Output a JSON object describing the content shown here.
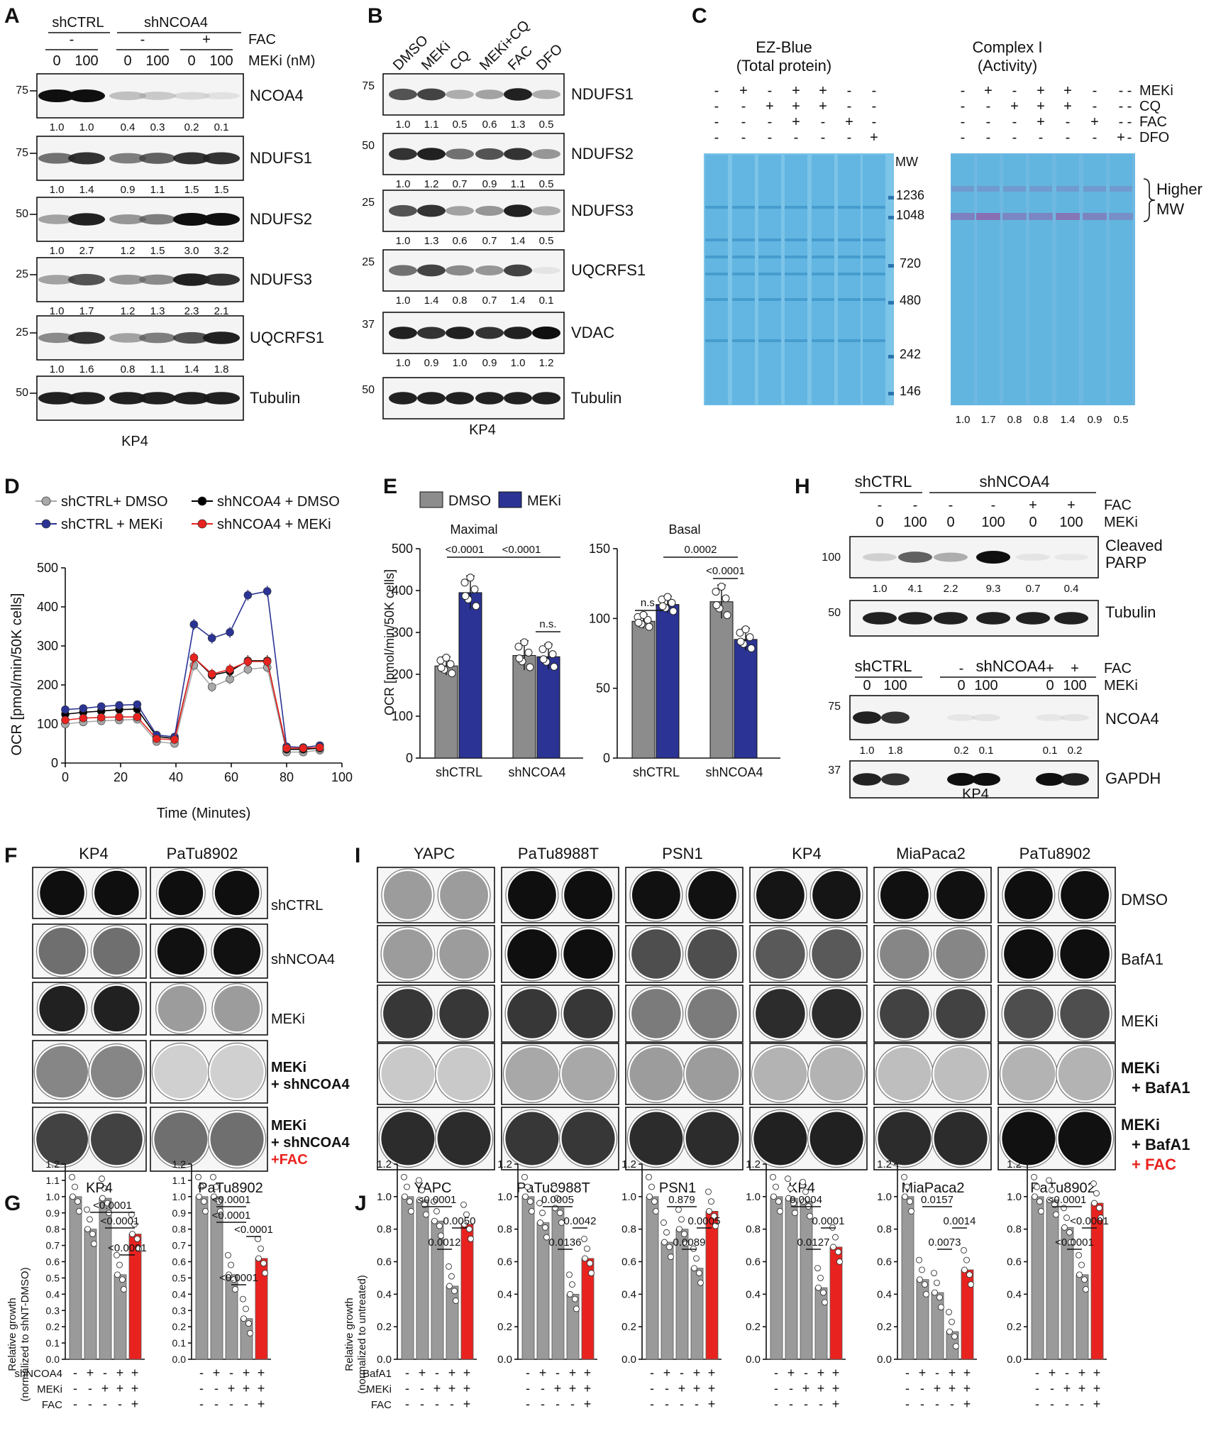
{
  "panels": {
    "A": {
      "label": "A",
      "group_ctrl": "shCTRL",
      "group_kd": "shNCOA4",
      "fac_label": "FAC",
      "meki_label": "MEKi (nM)",
      "fac_signs": [
        "-",
        "-",
        "+"
      ],
      "meki_doses": [
        "0",
        "100",
        "0",
        "100",
        "0",
        "100"
      ],
      "cell_line": "KP4",
      "blots": [
        {
          "name": "NCOA4",
          "mw": "75",
          "quant": [
            "1.0",
            "1.0",
            "0.4",
            "0.3",
            "0.2",
            "0.1"
          ],
          "intensity": [
            1.0,
            1.0,
            0.35,
            0.3,
            0.2,
            0.12
          ]
        },
        {
          "name": "NDUFS1",
          "mw": "75",
          "quant": [
            "1.0",
            "1.4",
            "0.9",
            "1.1",
            "1.5",
            "1.5"
          ],
          "intensity": [
            0.7,
            0.9,
            0.65,
            0.75,
            0.9,
            0.9
          ]
        },
        {
          "name": "NDUFS2",
          "mw": "50",
          "quant": [
            "1.0",
            "2.7",
            "1.2",
            "1.5",
            "3.0",
            "3.2"
          ],
          "intensity": [
            0.5,
            0.95,
            0.55,
            0.65,
            1.0,
            1.0
          ]
        },
        {
          "name": "NDUFS3",
          "mw": "25",
          "quant": [
            "1.0",
            "1.7",
            "1.2",
            "1.3",
            "2.3",
            "2.1"
          ],
          "intensity": [
            0.5,
            0.8,
            0.55,
            0.6,
            0.95,
            0.9
          ]
        },
        {
          "name": "UQCRFS1",
          "mw": "25",
          "quant": [
            "1.0",
            "1.6",
            "0.8",
            "1.1",
            "1.4",
            "1.8"
          ],
          "intensity": [
            0.6,
            0.9,
            0.5,
            0.65,
            0.8,
            0.95
          ]
        },
        {
          "name": "Tubulin",
          "mw": "50",
          "quant": [],
          "intensity": [
            0.95,
            0.95,
            0.95,
            0.95,
            0.95,
            0.95
          ]
        }
      ]
    },
    "B": {
      "label": "B",
      "lanes": [
        "DMSO",
        "MEKi",
        "CQ",
        "MEKi+CQ",
        "FAC",
        "DFO"
      ],
      "cell_line": "KP4",
      "blots": [
        {
          "name": "NDUFS1",
          "mw": "75",
          "quant": [
            "1.0",
            "1.1",
            "0.5",
            "0.6",
            "1.3",
            "0.5"
          ],
          "intensity": [
            0.8,
            0.85,
            0.45,
            0.5,
            0.95,
            0.45
          ]
        },
        {
          "name": "NDUFS2",
          "mw": "50",
          "quant": [
            "1.0",
            "1.2",
            "0.7",
            "0.9",
            "1.1",
            "0.5"
          ],
          "intensity": [
            0.9,
            0.95,
            0.7,
            0.8,
            0.9,
            0.55
          ]
        },
        {
          "name": "NDUFS3",
          "mw": "25",
          "quant": [
            "1.0",
            "1.3",
            "0.6",
            "0.7",
            "1.4",
            "0.5"
          ],
          "intensity": [
            0.8,
            0.9,
            0.5,
            0.55,
            0.95,
            0.45
          ]
        },
        {
          "name": "UQCRFS1",
          "mw": "25",
          "quant": [
            "1.0",
            "1.4",
            "0.8",
            "0.7",
            "1.4",
            "0.1"
          ],
          "intensity": [
            0.7,
            0.85,
            0.6,
            0.55,
            0.85,
            0.1
          ]
        },
        {
          "name": "VDAC",
          "mw": "37",
          "quant": [
            "1.0",
            "0.9",
            "1.0",
            "0.9",
            "1.0",
            "1.2"
          ],
          "intensity": [
            0.95,
            0.9,
            0.95,
            0.9,
            0.95,
            1.0
          ]
        },
        {
          "name": "Tubulin",
          "mw": "50",
          "quant": [],
          "intensity": [
            0.95,
            0.95,
            0.95,
            0.95,
            0.95,
            0.95
          ]
        }
      ]
    },
    "C": {
      "label": "C",
      "gel1_title": [
        "EZ-Blue",
        "(Total protein)"
      ],
      "gel2_title": [
        "Complex I",
        "(Activity)"
      ],
      "rows": [
        {
          "label": "MEKi",
          "signs": [
            "-",
            "+",
            "-",
            "+",
            "+",
            "-",
            "-"
          ]
        },
        {
          "label": "CQ",
          "signs": [
            "-",
            "-",
            "+",
            "+",
            "+",
            "-",
            "-"
          ]
        },
        {
          "label": "FAC",
          "signs": [
            "-",
            "-",
            "-",
            "+",
            "-",
            "+",
            "-"
          ]
        },
        {
          "label": "DFO",
          "signs": [
            "-",
            "-",
            "-",
            "-",
            "-",
            "-",
            "+"
          ]
        }
      ],
      "mw_title": "MW",
      "markers": [
        "1236",
        "1048",
        "720",
        "480",
        "242",
        "146"
      ],
      "bracket_label": [
        "Higher",
        "MW"
      ],
      "quant": [
        "1.0",
        "1.7",
        "0.8",
        "0.8",
        "1.4",
        "0.9",
        "0.5"
      ]
    },
    "D": {
      "label": "D",
      "legend": [
        "shCTRL+ DMSO",
        "shNCOA4 + DMSO",
        "shCTRL + MEKi",
        "shNCOA4 + MEKi"
      ],
      "ylabel": "OCR [pmol/min/50K cells]",
      "xlabel": "Time (Minutes)",
      "yticks": [
        "0",
        "100",
        "200",
        "300",
        "400",
        "500"
      ],
      "xticks": [
        "0",
        "20",
        "40",
        "60",
        "80",
        "100"
      ]
    },
    "E": {
      "label": "E",
      "legend": [
        "DMSO",
        "MEKi"
      ],
      "ylabel": "OCR [pmol/min/50K cells]",
      "left_title": "Maximal",
      "right_title": "Basal",
      "left_yticks": [
        "0",
        "100",
        "200",
        "300",
        "400",
        "500"
      ],
      "right_yticks": [
        "0",
        "50",
        "100",
        "150"
      ],
      "groups": [
        "shCTRL",
        "shNCOA4"
      ],
      "left_stats": [
        "<0.0001",
        "<0.0001",
        "n.s."
      ],
      "right_stats": [
        "n.s.",
        "0.0002",
        "<0.0001"
      ]
    },
    "F": {
      "label": "F",
      "columns": [
        "KP4",
        "PaTu8902"
      ],
      "rows": [
        "shCTRL",
        "shNCOA4",
        "MEKi",
        "MEKi",
        "+ shNCOA4",
        "MEKi",
        "+ shNCOA4",
        "+FAC"
      ],
      "density": [
        [
          0.98,
          0.98
        ],
        [
          0.55,
          0.97
        ],
        [
          0.9,
          0.35
        ],
        [
          0.45,
          0.12
        ],
        [
          0.75,
          0.55
        ]
      ]
    },
    "G": {
      "label": "G",
      "ylabel": [
        "Relative growth",
        "(normalized to shNT-DMSO)"
      ],
      "titles": [
        "KP4",
        "PaTu8902"
      ],
      "yticks": [
        "0.0",
        "0.1",
        "0.2",
        "0.3",
        "0.4",
        "0.5",
        "0.6",
        "0.7",
        "0.8",
        "0.9",
        "1.0",
        "1.1",
        "1.2"
      ],
      "row_labels": [
        "shNCOA4",
        "MEKi",
        "FAC"
      ],
      "signs": [
        [
          "-",
          "+",
          "-",
          "+",
          "+"
        ],
        [
          "-",
          "-",
          "+",
          "+",
          "+"
        ],
        [
          "-",
          "-",
          "-",
          "-",
          "+"
        ]
      ],
      "kp4_stats": [
        "<0.0001",
        "<0.0001",
        "<0.0001"
      ],
      "patu_stats": [
        "<0.0001",
        "<0.0001",
        "<0.0001",
        "<0.0001"
      ]
    },
    "H": {
      "label": "H",
      "group_ctrl": "shCTRL",
      "group_kd": "shNCOA4",
      "fac_label": "FAC",
      "meki_label": "MEKi",
      "fac_signs": [
        "-",
        "-",
        "-",
        "-",
        "+",
        "+"
      ],
      "meki_doses": [
        "0",
        "100",
        "0",
        "100",
        "0",
        "100"
      ],
      "blot1": {
        "name": [
          "Cleaved",
          "PARP"
        ],
        "mw": "100",
        "quant": [
          "1.0",
          "4.1",
          "2.2",
          "9.3",
          "0.7",
          "0.4"
        ],
        "intensity": [
          0.25,
          0.75,
          0.45,
          1.0,
          0.1,
          0.05
        ]
      },
      "blot2": {
        "name": "Tubulin",
        "mw": "50"
      },
      "blot3": {
        "name": "NCOA4",
        "mw": "75",
        "quant": [
          "1.0",
          "1.8",
          "0.2",
          "0.1",
          "0.1",
          "0.2"
        ]
      },
      "blot4": {
        "name": "GAPDH",
        "mw": "37"
      },
      "cell_line": "KP4"
    },
    "I": {
      "label": "I",
      "columns": [
        "YAPC",
        "PaTu8988T",
        "PSN1",
        "KP4",
        "MiaPaca2",
        "PaTu8902"
      ],
      "rows": [
        "DMSO",
        "BafA1",
        "MEKi",
        "MEKi",
        "+ BafA1",
        "MEKi",
        "+ BafA1",
        "+ FAC"
      ],
      "density": [
        [
          0.35,
          0.98,
          0.97,
          0.95,
          0.97,
          0.98
        ],
        [
          0.35,
          0.98,
          0.7,
          0.65,
          0.45,
          0.98
        ],
        [
          0.8,
          0.8,
          0.5,
          0.85,
          0.75,
          0.7
        ],
        [
          0.15,
          0.3,
          0.35,
          0.25,
          0.2,
          0.25
        ],
        [
          0.85,
          0.8,
          0.85,
          0.9,
          0.85,
          0.97
        ]
      ]
    },
    "J": {
      "label": "J",
      "ylabel": [
        "Relative growth",
        "(normalized to untreated)"
      ],
      "yticks": [
        "0.0",
        "0.2",
        "0.4",
        "0.6",
        "0.8",
        "1.0",
        "1.2"
      ],
      "row_labels": [
        "BafA1",
        "MEKi",
        "FAC"
      ],
      "signs": [
        [
          "-",
          "+",
          "-",
          "+",
          "+"
        ],
        [
          "-",
          "-",
          "+",
          "+",
          "+"
        ],
        [
          "-",
          "-",
          "-",
          "-",
          "+"
        ]
      ],
      "subplots": [
        {
          "title": "YAPC",
          "stats": [
            "<0.0001",
            "0.0050",
            "0.0012"
          ]
        },
        {
          "title": "PaTu8988T",
          "stats": [
            "0.0005",
            "0.0042",
            "0.0136"
          ]
        },
        {
          "title": "PSN1",
          "stats": [
            "0.879",
            "0.0005",
            "0.0089"
          ]
        },
        {
          "title": "KP4",
          "stats": [
            "0.0004",
            "0.0001",
            "0.0127"
          ]
        },
        {
          "title": "MiaPaca2",
          "stats": [
            "0.0157",
            "0.0014",
            "0.0073"
          ]
        },
        {
          "title": "PaTu8902",
          "stats": [
            "<0.0001",
            "<0.0001",
            "<0.0001"
          ]
        }
      ]
    }
  },
  "colors": {
    "dmso": "#8c8c8c",
    "meki": "#2b3494",
    "red": "#e8231f",
    "gray_bar": "#9a9a9a",
    "stain_blue": "#5fb4df",
    "activity_purple": "#8a6bb0"
  },
  "chart_data": [
    {
      "type": "line",
      "panel": "D",
      "xlabel": "Time (Minutes)",
      "ylabel": "OCR [pmol/min/50K cells]",
      "xlim": [
        0,
        100
      ],
      "ylim": [
        0,
        500
      ],
      "x": [
        0,
        6.5,
        13,
        19.5,
        26,
        33,
        39.5,
        46.5,
        53,
        59.5,
        66,
        73,
        80,
        86,
        92
      ],
      "series": [
        {
          "name": "shCTRL+ DMSO",
          "color": "#a9a9a9",
          "values": [
            100,
            105,
            108,
            110,
            112,
            55,
            50,
            250,
            195,
            215,
            240,
            245,
            28,
            28,
            33
          ]
        },
        {
          "name": "shNCOA4 + DMSO",
          "color": "#000000",
          "values": [
            125,
            130,
            133,
            137,
            138,
            68,
            63,
            270,
            225,
            235,
            262,
            262,
            35,
            35,
            38
          ]
        },
        {
          "name": "shCTRL + MEKi",
          "color": "#2b3494",
          "values": [
            137,
            140,
            145,
            148,
            150,
            72,
            67,
            355,
            320,
            335,
            430,
            440,
            42,
            40,
            45
          ]
        },
        {
          "name": "shNCOA4 + MEKi",
          "color": "#e8231f",
          "values": [
            110,
            115,
            117,
            118,
            118,
            62,
            60,
            270,
            228,
            240,
            260,
            260,
            38,
            38,
            40
          ]
        }
      ]
    },
    {
      "type": "bar",
      "panel": "E",
      "title": "Maximal",
      "ylabel": "OCR [pmol/min/50K cells]",
      "categories": [
        "shCTRL",
        "shNCOA4"
      ],
      "ylim": [
        0,
        500
      ],
      "series": [
        {
          "name": "DMSO",
          "values": [
            220,
            245
          ],
          "err": [
            22,
            35
          ]
        },
        {
          "name": "MEKi",
          "values": [
            395,
            242
          ],
          "err": [
            40,
            30
          ]
        }
      ]
    },
    {
      "type": "bar",
      "panel": "E",
      "title": "Basal",
      "categories": [
        "shCTRL",
        "shNCOA4"
      ],
      "ylim": [
        0,
        150
      ],
      "series": [
        {
          "name": "DMSO",
          "values": [
            98,
            112
          ],
          "err": [
            5,
            12
          ]
        },
        {
          "name": "MEKi",
          "values": [
            110,
            85
          ],
          "err": [
            6,
            8
          ]
        }
      ]
    },
    {
      "type": "bar",
      "panel": "G",
      "title": "KP4",
      "ylim": [
        0,
        1.2
      ],
      "values": [
        1.0,
        0.8,
        0.99,
        0.52,
        0.77
      ]
    },
    {
      "type": "bar",
      "panel": "G",
      "title": "PaTu8902",
      "ylim": [
        0,
        1.2
      ],
      "values": [
        1.0,
        1.0,
        0.52,
        0.25,
        0.62
      ]
    },
    {
      "type": "bar",
      "panel": "J",
      "title": "YAPC",
      "ylim": [
        0,
        1.2
      ],
      "values": [
        1.0,
        0.98,
        0.85,
        0.45,
        0.83
      ]
    },
    {
      "type": "bar",
      "panel": "J",
      "title": "PaTu8988T",
      "ylim": [
        0,
        1.2
      ],
      "values": [
        1.0,
        0.84,
        0.93,
        0.4,
        0.62
      ]
    },
    {
      "type": "bar",
      "panel": "J",
      "title": "PSN1",
      "ylim": [
        0,
        1.2
      ],
      "values": [
        1.0,
        0.72,
        0.8,
        0.56,
        0.91
      ]
    },
    {
      "type": "bar",
      "panel": "J",
      "title": "KP4",
      "ylim": [
        0,
        1.2
      ],
      "values": [
        1.0,
        0.99,
        0.97,
        0.44,
        0.69
      ]
    },
    {
      "type": "bar",
      "panel": "J",
      "title": "MiaPaca2",
      "ylim": [
        0,
        1.2
      ],
      "values": [
        1.0,
        0.49,
        0.41,
        0.17,
        0.55
      ]
    },
    {
      "type": "bar",
      "panel": "J",
      "title": "PaTu8902",
      "ylim": [
        0,
        1.2
      ],
      "values": [
        1.0,
        0.98,
        0.81,
        0.52,
        0.96
      ]
    }
  ]
}
